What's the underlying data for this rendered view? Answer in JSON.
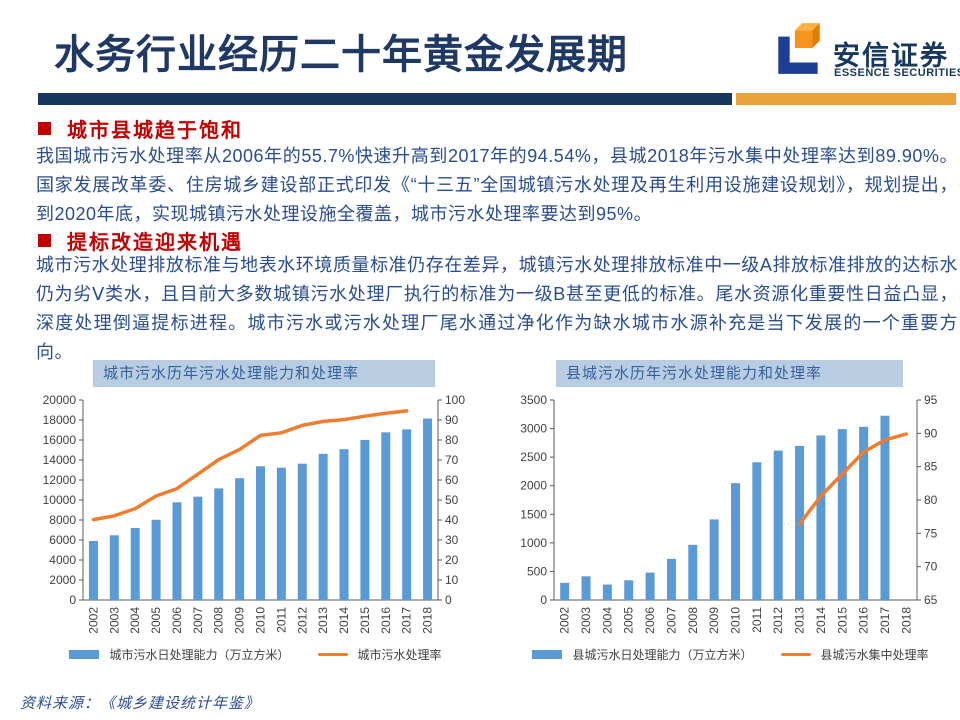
{
  "header": {
    "title": "水务行业经历二十年黄金发展期",
    "title_color": "#1F3864",
    "underline_color": "#17375E",
    "logo": {
      "cn": "安信证券",
      "en": "ESSENCE SECURITIES",
      "bar_color": "#E9A23B",
      "mark_blue": "#1C3F94",
      "mark_orange": "#F7941D"
    }
  },
  "sections": [
    {
      "heading": "城市县城趋于饱和",
      "body": "我国城市污水处理率从2006年的55.7%快速升高到2017年的94.54%，县城2018年污水集中处理率达到89.90%。国家发展改革委、住房城乡建设部正式印发《“十三五”全国城镇污水处理及再生利用设施建设规划》，规划提出，到2020年底，实现城镇污水处理设施全覆盖，城市污水处理率要达到95%。"
    },
    {
      "heading": "提标改造迎来机遇",
      "body": "城市污水处理排放标准与地表水环境质量标准仍存在差异，城镇污水处理排放标准中一级A排放标准排放的达标水仍为劣Ⅴ类水，且目前大多数城镇污水处理厂执行的标准为一级B甚至更低的标准。尾水资源化重要性日益凸显，深度处理倒逼提标进程。城市污水或污水处理厂尾水通过净化作为缺水城市水源补充是当下发展的一个重要方向。"
    }
  ],
  "chart_data": [
    {
      "type": "bar+line",
      "title": "城市污水历年污水处理能力和处理率",
      "categories": [
        "2002",
        "2003",
        "2004",
        "2005",
        "2006",
        "2007",
        "2008",
        "2009",
        "2010",
        "2011",
        "2012",
        "2013",
        "2014",
        "2015",
        "2016",
        "2017",
        "2018"
      ],
      "bar_series": {
        "name": "城市污水日处理能力（万立方米）",
        "color": "#5B9BD5",
        "values": [
          5900,
          6470,
          7200,
          8020,
          9770,
          10330,
          11160,
          12180,
          13370,
          13230,
          13630,
          14620,
          15080,
          16010,
          16770,
          17060,
          18150
        ]
      },
      "line_series": {
        "name": "城市污水处理率",
        "color": "#ED7D31",
        "values": [
          40.2,
          42.1,
          45.7,
          52.0,
          55.7,
          62.9,
          70.2,
          75.3,
          82.3,
          83.6,
          87.3,
          89.3,
          90.2,
          91.9,
          93.4,
          94.54,
          null
        ]
      },
      "y_left": {
        "min": 0,
        "max": 20000,
        "step": 2000
      },
      "y_right": {
        "min": 0,
        "max": 100,
        "step": 10
      },
      "legend_position": "bottom",
      "grid": false
    },
    {
      "type": "bar+line",
      "title": "县城污水历年污水处理能力和处理率",
      "categories": [
        "2002",
        "2003",
        "2004",
        "2005",
        "2006",
        "2007",
        "2008",
        "2009",
        "2010",
        "2011",
        "2012",
        "2013",
        "2014",
        "2015",
        "2016",
        "2017",
        "2018"
      ],
      "bar_series": {
        "name": "县城污水日处理能力（万立方米）",
        "color": "#5B9BD5",
        "values": [
          300,
          415,
          270,
          345,
          480,
          720,
          965,
          1410,
          2045,
          2410,
          2615,
          2695,
          2880,
          2990,
          3030,
          3225,
          null
        ]
      },
      "line_series": {
        "name": "县城污水集中处理率",
        "color": "#ED7D31",
        "values": [
          null,
          null,
          null,
          null,
          null,
          null,
          null,
          null,
          null,
          null,
          null,
          76.4,
          80.6,
          83.9,
          87.2,
          89.0,
          89.9
        ]
      },
      "y_left": {
        "min": 0,
        "max": 3500,
        "step": 500
      },
      "y_right": {
        "min": 65,
        "max": 95,
        "step": 5
      },
      "legend_position": "bottom",
      "grid": false
    }
  ],
  "footer": {
    "source": "资料来源：《城乡建设统计年鉴》"
  }
}
